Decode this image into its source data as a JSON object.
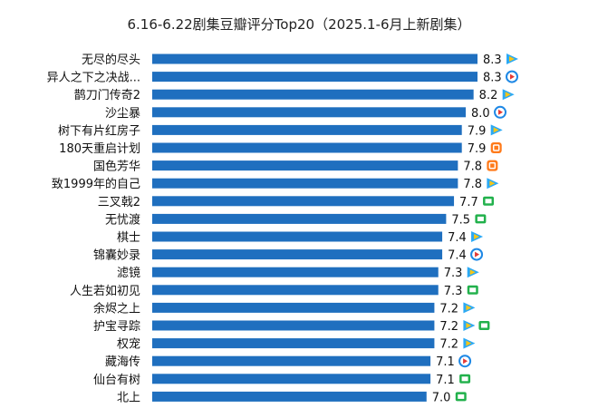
{
  "chart_data": {
    "type": "bar",
    "orientation": "horizontal",
    "title": "6.16-6.22剧集豆瓣评分Top20（2025.1-6月上新剧集）",
    "categories": [
      "无尽的尽头",
      "异人之下之决战...",
      "鹊刀门传奇2",
      "沙尘暴",
      "树下有片红房子",
      "180天重启计划",
      "国色芳华",
      "致1999年的自己",
      "三叉戟2",
      "无忧渡",
      "棋士",
      "锦囊妙录",
      "滤镜",
      "人生若如初见",
      "余烬之上",
      "护宝寻踪",
      "权宠",
      "藏海传",
      "仙台有树",
      "北上"
    ],
    "values": [
      8.3,
      8.3,
      8.2,
      8.0,
      7.9,
      7.9,
      7.8,
      7.8,
      7.7,
      7.5,
      7.4,
      7.4,
      7.3,
      7.3,
      7.2,
      7.2,
      7.2,
      7.1,
      7.1,
      7.0
    ],
    "value_labels": [
      "8.3",
      "8.3",
      "8.2",
      "8.0",
      "7.9",
      "7.9",
      "7.8",
      "7.8",
      "7.7",
      "7.5",
      "7.4",
      "7.4",
      "7.3",
      "7.3",
      "7.2",
      "7.2",
      "7.2",
      "7.1",
      "7.1",
      "7.0"
    ],
    "platforms": [
      [
        "tencent-video"
      ],
      [
        "youku"
      ],
      [
        "tencent-video"
      ],
      [
        "youku"
      ],
      [
        "tencent-video"
      ],
      [
        "mgtv"
      ],
      [
        "mgtv"
      ],
      [
        "tencent-video"
      ],
      [
        "iqiyi"
      ],
      [
        "iqiyi"
      ],
      [
        "tencent-video"
      ],
      [
        "youku"
      ],
      [
        "tencent-video"
      ],
      [
        "iqiyi"
      ],
      [
        "tencent-video"
      ],
      [
        "tencent-video",
        "iqiyi"
      ],
      [
        "tencent-video"
      ],
      [
        "youku"
      ],
      [
        "iqiyi"
      ],
      [
        "iqiyi"
      ]
    ],
    "xlim": [
      0,
      8.3
    ],
    "grid": false,
    "colors": {
      "bar": "#1f6fbf",
      "tencent-video": "#2ba9f5",
      "tencent-video-accent": "#f5c518",
      "youku": "#1e88e5",
      "youku-accent": "#e53935",
      "mgtv": "#ff7a1a",
      "iqiyi": "#22b14c"
    }
  }
}
